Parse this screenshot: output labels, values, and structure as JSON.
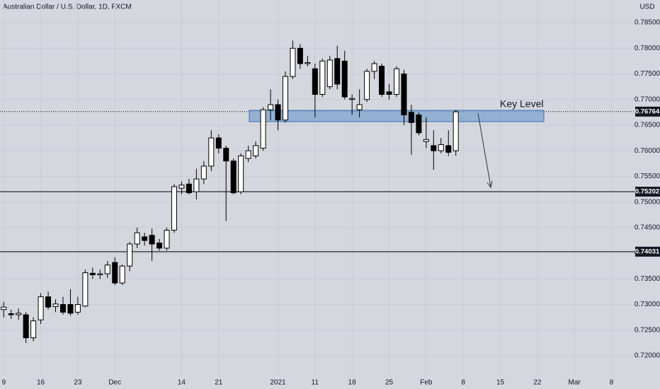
{
  "chart_data": {
    "type": "candlestick",
    "title": "Australian Dollar / U.S. Dollar, 1D, FXCM",
    "y_axis_label": "USD",
    "annotation": "Key Level",
    "open": [
      0.729,
      0.7282,
      0.728,
      0.728,
      0.7235,
      0.727,
      0.7315,
      0.7296,
      0.73,
      0.73,
      0.7285,
      0.7297,
      0.7361,
      0.7358,
      0.736,
      0.7382,
      0.7342,
      0.7375,
      0.7418,
      0.7432,
      0.7435,
      0.742,
      0.741,
      0.7445,
      0.7527,
      0.7535,
      0.752,
      0.7545,
      0.757,
      0.7625,
      0.7605,
      0.758,
      0.752,
      0.7585,
      0.759,
      0.7605,
      0.768,
      0.769,
      0.766,
      0.7745,
      0.78,
      0.777,
      0.776,
      0.771,
      0.7725,
      0.778,
      0.7775,
      0.77,
      0.768,
      0.77,
      0.7755,
      0.7765,
      0.7715,
      0.771,
      0.775,
      0.7675,
      0.767,
      0.7618,
      0.761,
      0.76,
      0.761,
      0.76
    ],
    "high": [
      0.7305,
      0.729,
      0.7292,
      0.7285,
      0.7275,
      0.7322,
      0.7325,
      0.731,
      0.7315,
      0.733,
      0.7315,
      0.7368,
      0.7372,
      0.7368,
      0.7385,
      0.7392,
      0.7378,
      0.7422,
      0.745,
      0.744,
      0.7448,
      0.7428,
      0.745,
      0.7535,
      0.754,
      0.7545,
      0.7565,
      0.758,
      0.764,
      0.7632,
      0.761,
      0.7585,
      0.7595,
      0.761,
      0.7618,
      0.7685,
      0.772,
      0.77,
      0.7755,
      0.7815,
      0.7808,
      0.7785,
      0.777,
      0.778,
      0.7785,
      0.7805,
      0.7795,
      0.771,
      0.772,
      0.776,
      0.7775,
      0.777,
      0.773,
      0.7765,
      0.7758,
      0.769,
      0.7675,
      0.7665,
      0.764,
      0.7625,
      0.764,
      0.768
    ],
    "low": [
      0.7275,
      0.7272,
      0.727,
      0.7225,
      0.7228,
      0.7262,
      0.729,
      0.7285,
      0.728,
      0.7278,
      0.728,
      0.7295,
      0.735,
      0.735,
      0.7352,
      0.7338,
      0.7338,
      0.7365,
      0.741,
      0.7415,
      0.7385,
      0.7405,
      0.7405,
      0.744,
      0.7515,
      0.7515,
      0.7505,
      0.7535,
      0.756,
      0.7595,
      0.7463,
      0.7515,
      0.7515,
      0.7578,
      0.7585,
      0.76,
      0.766,
      0.764,
      0.7655,
      0.774,
      0.776,
      0.7765,
      0.7665,
      0.7705,
      0.772,
      0.772,
      0.77,
      0.767,
      0.7665,
      0.7695,
      0.774,
      0.7705,
      0.77,
      0.7705,
      0.765,
      0.7592,
      0.763,
      0.7605,
      0.7563,
      0.7595,
      0.759,
      0.759
    ],
    "close": [
      0.7295,
      0.728,
      0.7283,
      0.7235,
      0.7268,
      0.7315,
      0.7295,
      0.7301,
      0.7285,
      0.7283,
      0.73,
      0.7362,
      0.7358,
      0.736,
      0.7377,
      0.7342,
      0.7375,
      0.7418,
      0.744,
      0.7425,
      0.7418,
      0.741,
      0.7445,
      0.753,
      0.7533,
      0.7518,
      0.7545,
      0.757,
      0.7625,
      0.7605,
      0.758,
      0.7518,
      0.759,
      0.76,
      0.761,
      0.768,
      0.769,
      0.766,
      0.7745,
      0.78,
      0.777,
      0.7772,
      0.771,
      0.7775,
      0.7777,
      0.773,
      0.7705,
      0.7702,
      0.769,
      0.7755,
      0.777,
      0.771,
      0.771,
      0.776,
      0.767,
      0.7655,
      0.7635,
      0.7622,
      0.76,
      0.7612,
      0.7597,
      0.7676
    ],
    "xlim": [
      -0.5,
      85.2
    ],
    "xticks": [
      {
        "value": 0,
        "label": "9"
      },
      {
        "value": 5,
        "label": "16"
      },
      {
        "value": 10,
        "label": "23"
      },
      {
        "value": 15,
        "label": "Dec"
      },
      {
        "value": 24,
        "label": "14"
      },
      {
        "value": 29,
        "label": "21"
      },
      {
        "value": 37,
        "label": "2021"
      },
      {
        "value": 42,
        "label": "11"
      },
      {
        "value": 47,
        "label": "18"
      },
      {
        "value": 52,
        "label": "25"
      },
      {
        "value": 57,
        "label": "Feb"
      },
      {
        "value": 62,
        "label": "8"
      },
      {
        "value": 67,
        "label": "15"
      },
      {
        "value": 72,
        "label": "22"
      },
      {
        "value": 77,
        "label": "Mar"
      },
      {
        "value": 82,
        "label": "8"
      }
    ],
    "ylim": [
      0.71351,
      0.78942
    ],
    "yticks": [
      {
        "value": 0.72,
        "label": "0.72000"
      },
      {
        "value": 0.725,
        "label": "0.72500"
      },
      {
        "value": 0.73,
        "label": "0.73000"
      },
      {
        "value": 0.735,
        "label": "0.73500"
      },
      {
        "value": 0.74,
        "label": "0.74000"
      },
      {
        "value": 0.745,
        "label": "0.74500"
      },
      {
        "value": 0.75,
        "label": "0.75000"
      },
      {
        "value": 0.755,
        "label": "0.75500"
      },
      {
        "value": 0.76,
        "label": "0.76000"
      },
      {
        "value": 0.765,
        "label": "0.76500"
      },
      {
        "value": 0.77,
        "label": "0.77000"
      },
      {
        "value": 0.775,
        "label": "0.77500"
      },
      {
        "value": 0.78,
        "label": "0.78000"
      },
      {
        "value": 0.785,
        "label": "0.78500"
      }
    ],
    "levels": [
      {
        "value": 0.76764,
        "style": "dotted"
      },
      {
        "value": 0.75202,
        "style": "solid"
      },
      {
        "value": 0.74031,
        "style": "solid"
      }
    ],
    "up_color": "#ffffff",
    "down_color": "#000000",
    "grid": true
  }
}
